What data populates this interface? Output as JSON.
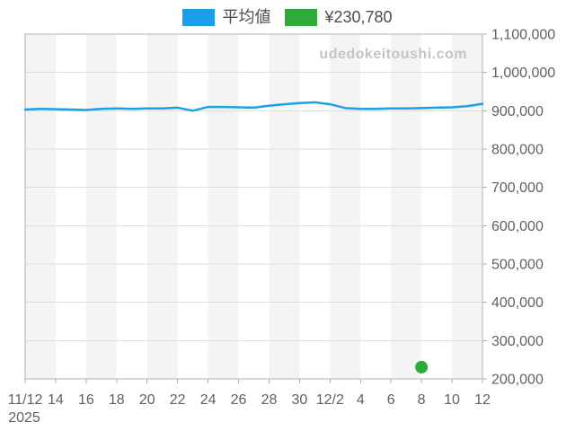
{
  "legend": {
    "avg_label": "平均値",
    "point_label": "¥230,780",
    "avg_color": "#1aa0e8",
    "point_color": "#2dab38"
  },
  "watermark": "udedokeitoushi.com",
  "chart_data": {
    "type": "line",
    "title": "",
    "xlabel": "",
    "ylabel": "",
    "x": [
      "11/12",
      "11/13",
      "11/14",
      "11/15",
      "11/16",
      "11/17",
      "11/18",
      "11/19",
      "11/20",
      "11/21",
      "11/22",
      "11/23",
      "11/24",
      "11/25",
      "11/26",
      "11/27",
      "11/28",
      "11/29",
      "11/30",
      "12/1",
      "12/2",
      "12/3",
      "12/4",
      "12/5",
      "12/6",
      "12/7",
      "12/8",
      "12/9",
      "12/10",
      "12/11",
      "12/12"
    ],
    "series": [
      {
        "name": "平均値",
        "color": "#1aa0e8",
        "values": [
          903000,
          905000,
          904000,
          903000,
          902000,
          905000,
          906000,
          905000,
          906000,
          906000,
          908000,
          900000,
          910000,
          910000,
          909000,
          908000,
          913000,
          917000,
          920000,
          922000,
          917000,
          907000,
          905000,
          905000,
          906000,
          906000,
          907000,
          908000,
          909000,
          912000,
          918000
        ]
      }
    ],
    "point": {
      "x": "12/8",
      "value": 230780,
      "label": "¥230,780",
      "color": "#2dab38"
    },
    "x_tick_labels": [
      "11/12",
      "14",
      "16",
      "18",
      "20",
      "22",
      "24",
      "26",
      "28",
      "30",
      "12/2",
      "4",
      "6",
      "8",
      "10",
      "12"
    ],
    "x_axis_year_label": "2025",
    "y_ticks": [
      200000,
      300000,
      400000,
      500000,
      600000,
      700000,
      800000,
      900000,
      1000000,
      1100000
    ],
    "y_tick_labels": [
      "200,000",
      "300,000",
      "400,000",
      "500,000",
      "600,000",
      "700,000",
      "800,000",
      "900,000",
      "1,000,000",
      "1,100,000"
    ],
    "ylim": [
      200000,
      1100000
    ],
    "grid": "horizontal",
    "background_stripes": true,
    "stripe_color": "#f4f4f4",
    "gridline_color": "#dedede",
    "border_color": "#b0b0b0",
    "axis_text_color": "#606060",
    "legend_position": "top-center"
  }
}
